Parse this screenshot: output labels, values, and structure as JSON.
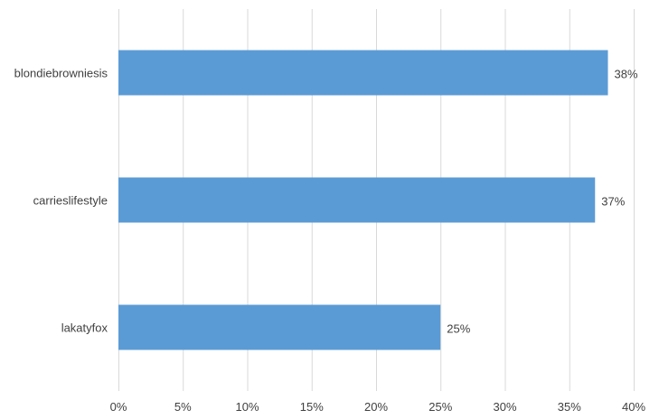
{
  "chart_data": {
    "type": "bar",
    "orientation": "horizontal",
    "categories": [
      "blondiebrowniesis",
      "carrieslifestyle",
      "lakatyfox"
    ],
    "values": [
      38,
      37,
      25
    ],
    "value_labels": [
      "38%",
      "37%",
      "25%"
    ],
    "xlim": [
      0,
      40
    ],
    "x_ticks": [
      0,
      5,
      10,
      15,
      20,
      25,
      30,
      35,
      40
    ],
    "x_tick_labels": [
      "0%",
      "5%",
      "10%",
      "15%",
      "20%",
      "25%",
      "30%",
      "35%",
      "40%"
    ],
    "title": "",
    "xlabel": "",
    "ylabel": "",
    "grid": "vertical",
    "legend": "none",
    "colors": {
      "bar": "#5b9bd5",
      "grid": "#d9d9d9",
      "text": "#404040"
    }
  }
}
